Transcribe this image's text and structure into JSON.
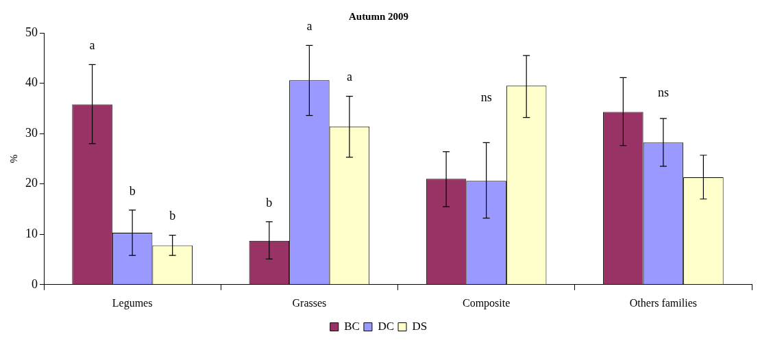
{
  "chart_data": {
    "type": "bar",
    "title": "Autumn 2009",
    "ylabel": "%",
    "categories": [
      "Legumes",
      "Grasses",
      "Composite",
      "Others families"
    ],
    "series": [
      {
        "name": "BC",
        "color": "#993366",
        "values": [
          35.8,
          8.7,
          21.0,
          34.3
        ],
        "errors": [
          [
            28.0,
            43.7
          ],
          [
            5.1,
            12.5
          ],
          [
            15.5,
            26.4
          ],
          [
            27.6,
            41.1
          ]
        ]
      },
      {
        "name": "DC",
        "color": "#9999ff",
        "values": [
          10.3,
          40.6,
          20.6,
          28.2
        ],
        "errors": [
          [
            5.8,
            14.8
          ],
          [
            33.6,
            47.5
          ],
          [
            13.2,
            28.2
          ],
          [
            23.5,
            33.0
          ]
        ]
      },
      {
        "name": "DS",
        "color": "#ffffcc",
        "values": [
          7.8,
          31.4,
          39.5,
          21.3
        ],
        "errors": [
          [
            5.8,
            9.8
          ],
          [
            25.3,
            37.4
          ],
          [
            33.2,
            45.5
          ],
          [
            17.0,
            25.7
          ]
        ]
      }
    ],
    "annotations": [
      "a",
      "b",
      "b",
      "b",
      "a",
      "a",
      "ns",
      "ns"
    ],
    "ylim": [
      0,
      50
    ],
    "yticks": [
      0,
      10,
      20,
      30,
      40,
      50
    ],
    "grid": false,
    "legend": "bottom"
  }
}
